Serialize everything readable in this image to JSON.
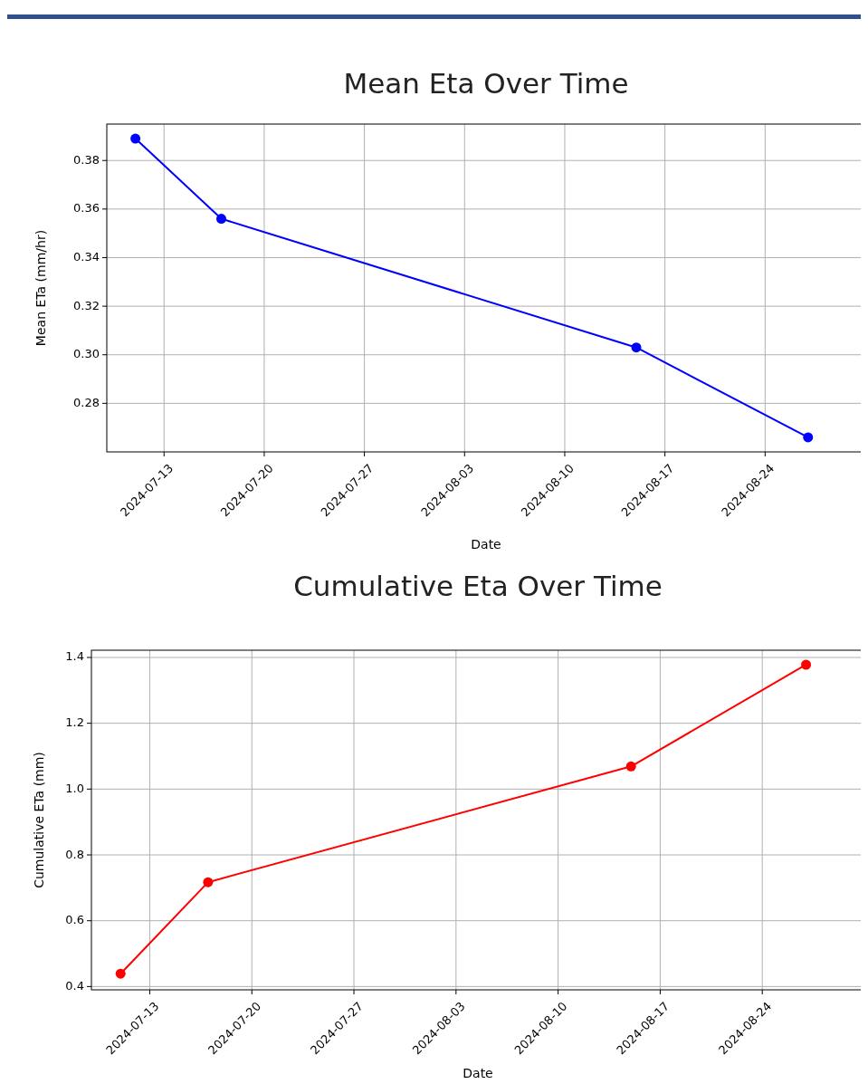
{
  "chart_data": [
    {
      "type": "line",
      "title": "Mean Eta Over Time",
      "xlabel": "Date",
      "ylabel": "Mean ETa (mm/hr)",
      "x": [
        "2024-07-11",
        "2024-07-17",
        "2024-08-15",
        "2024-08-27"
      ],
      "series": [
        {
          "color": "#0000ff",
          "values": [
            0.389,
            0.356,
            0.303,
            0.266
          ]
        }
      ],
      "xlim": [
        "2024-07-09",
        "2024-08-31"
      ],
      "xticks": [
        {
          "value": "2024-07-13",
          "label": "2024-07-13"
        },
        {
          "value": "2024-07-20",
          "label": "2024-07-20"
        },
        {
          "value": "2024-07-27",
          "label": "2024-07-27"
        },
        {
          "value": "2024-08-03",
          "label": "2024-08-03"
        },
        {
          "value": "2024-08-10",
          "label": "2024-08-10"
        },
        {
          "value": "2024-08-17",
          "label": "2024-08-17"
        },
        {
          "value": "2024-08-24",
          "label": "2024-08-24"
        }
      ],
      "ylim": [
        0.26,
        0.395
      ],
      "yticks": [
        {
          "value": 0.28,
          "label": "0.28"
        },
        {
          "value": 0.3,
          "label": "0.30"
        },
        {
          "value": 0.32,
          "label": "0.32"
        },
        {
          "value": 0.34,
          "label": "0.34"
        },
        {
          "value": 0.36,
          "label": "0.36"
        },
        {
          "value": 0.38,
          "label": "0.38"
        }
      ],
      "grid": true,
      "marker": "circle",
      "line_style": "solid"
    },
    {
      "type": "line",
      "title": "Cumulative Eta Over Time",
      "xlabel": "Date",
      "ylabel": "Cumulative ETa (mm)",
      "x": [
        "2024-07-11",
        "2024-07-17",
        "2024-08-15",
        "2024-08-27"
      ],
      "series": [
        {
          "color": "#ff0000",
          "values": [
            0.439,
            0.717,
            1.069,
            1.378
          ]
        }
      ],
      "xlim": [
        "2024-07-09",
        "2024-08-31"
      ],
      "xticks": [
        {
          "value": "2024-07-13",
          "label": "2024-07-13"
        },
        {
          "value": "2024-07-20",
          "label": "2024-07-20"
        },
        {
          "value": "2024-07-27",
          "label": "2024-07-27"
        },
        {
          "value": "2024-08-03",
          "label": "2024-08-03"
        },
        {
          "value": "2024-08-10",
          "label": "2024-08-10"
        },
        {
          "value": "2024-08-17",
          "label": "2024-08-17"
        },
        {
          "value": "2024-08-24",
          "label": "2024-08-24"
        }
      ],
      "ylim": [
        0.39,
        1.422
      ],
      "yticks": [
        {
          "value": 0.4,
          "label": "0.4"
        },
        {
          "value": 0.6,
          "label": "0.6"
        },
        {
          "value": 0.8,
          "label": "0.8"
        },
        {
          "value": 1.0,
          "label": "1.0"
        },
        {
          "value": 1.2,
          "label": "1.2"
        },
        {
          "value": 1.4,
          "label": "1.4"
        }
      ],
      "grid": true,
      "marker": "circle",
      "line_style": "solid"
    }
  ]
}
